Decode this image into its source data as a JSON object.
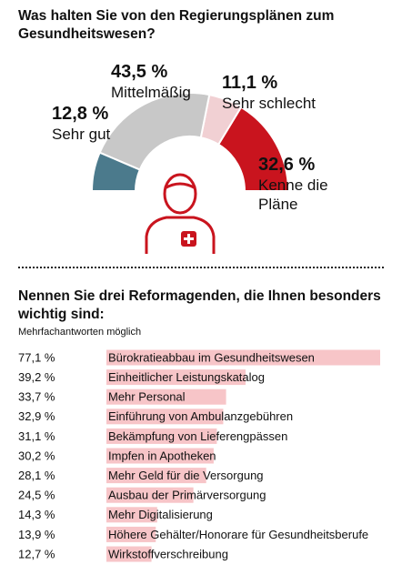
{
  "chart_data": [
    {
      "type": "semidonut",
      "title": "Was halten Sie von den Regierungsplänen zum Gesundheitswesen?",
      "categories": [
        "Sehr gut",
        "Mittelmäßig",
        "Sehr schlecht",
        "Kenne die Pläne"
      ],
      "values": [
        12.8,
        43.5,
        11.1,
        32.6
      ],
      "value_labels": [
        "12,8 %",
        "43,5 %",
        "11,1 %",
        "32,6 %"
      ],
      "colors": [
        "#4b7a8c",
        "#c8c8c8",
        "#f1d0d3",
        "#c9141e"
      ]
    },
    {
      "type": "hbar",
      "title": "Nennen Sie drei Reformagenden, die Ihnen besonders wichtig sind:",
      "subtitle": "Mehrfachantworten möglich",
      "categories": [
        "Bürokratieabbau im Gesundheitswesen",
        "Einheitlicher Leistungskatalog",
        "Mehr Personal",
        "Einführung von Ambulanzgebühren",
        "Bekämpfung von Lieferengpässen",
        "Impfen in Apotheken",
        "Mehr Geld für die Versorgung",
        "Ausbau der Primärversorgung",
        "Mehr Digitalisierung",
        "Höhere Gehälter/Honorare für Gesundheitsberufe",
        "Wirkstoffverschreibung"
      ],
      "values": [
        77.1,
        39.2,
        33.7,
        32.9,
        31.1,
        30.2,
        28.1,
        24.5,
        14.3,
        13.9,
        12.7
      ],
      "value_labels": [
        "77,1 %",
        "39,2 %",
        "33,7 %",
        "32,9 %",
        "31,1 %",
        "30,2 %",
        "28,1 %",
        "24,5 %",
        "14,3 %",
        "13,9 %",
        "12,7 %"
      ],
      "color": "#f7c5c8"
    }
  ]
}
